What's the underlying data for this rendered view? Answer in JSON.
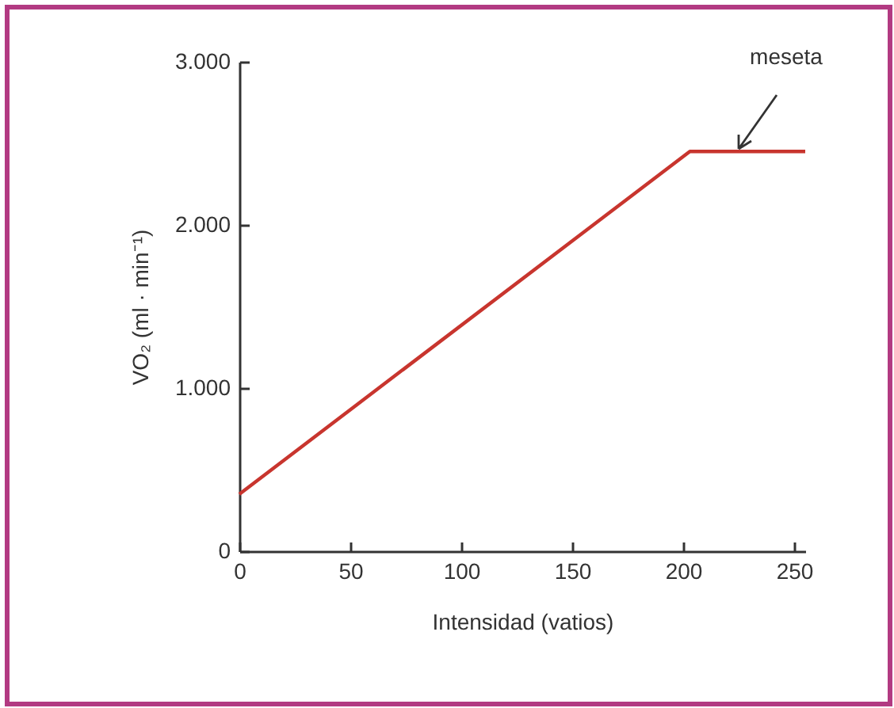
{
  "chart_data": {
    "type": "line",
    "xlabel": "Intensidad (vatios)",
    "ylabel": "VO₂ (ml · min⁻¹)",
    "x": [
      0,
      203,
      255
    ],
    "series": [
      {
        "color": "#c8352e",
        "values": [
          350,
          2450,
          2450
        ]
      }
    ],
    "xlim": [
      0,
      255
    ],
    "xticks": [
      0,
      50,
      100,
      150,
      200,
      250
    ],
    "ylim": [
      0,
      3000
    ],
    "yticks": [
      0,
      {
        "value": 1000,
        "label": "1.000"
      },
      {
        "value": 2000,
        "label": "2.000"
      },
      {
        "value": 3000,
        "label": "3.000"
      }
    ],
    "grid": false,
    "marker": "none",
    "line_style": "solid",
    "annotations": [
      {
        "text": "meseta",
        "x": 225,
        "y": 2450
      }
    ]
  }
}
